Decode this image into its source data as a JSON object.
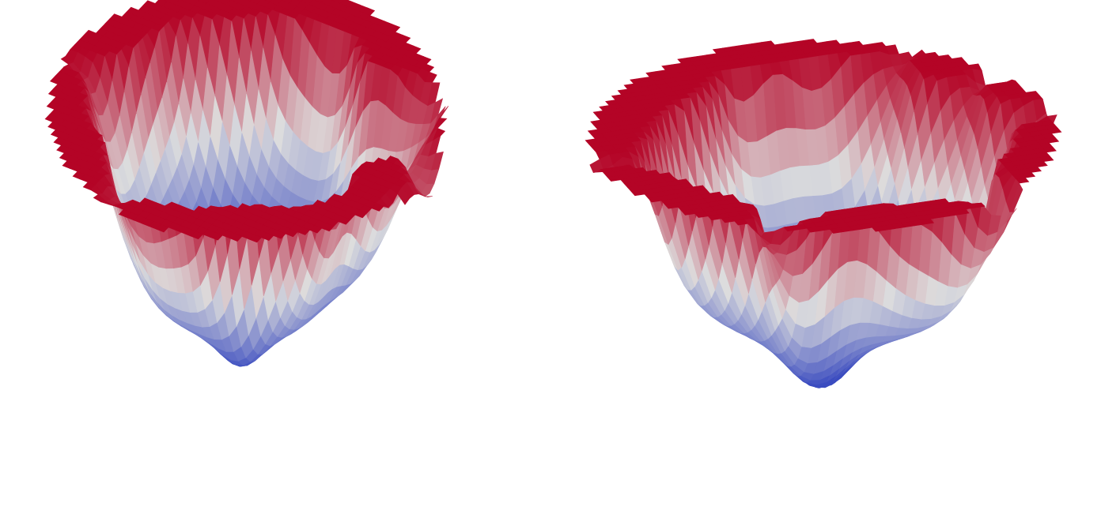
{
  "figure": {
    "panels": [
      {
        "id": "left",
        "surface": "loss-landscape-surface",
        "colormap": "coolwarm"
      },
      {
        "id": "right",
        "surface": "loss-landscape-surface",
        "colormap": "coolwarm"
      }
    ],
    "colors": {
      "low": "#3b4cc0",
      "mid": "#dddddd",
      "high": "#b40426",
      "background": "#ffffff"
    }
  }
}
